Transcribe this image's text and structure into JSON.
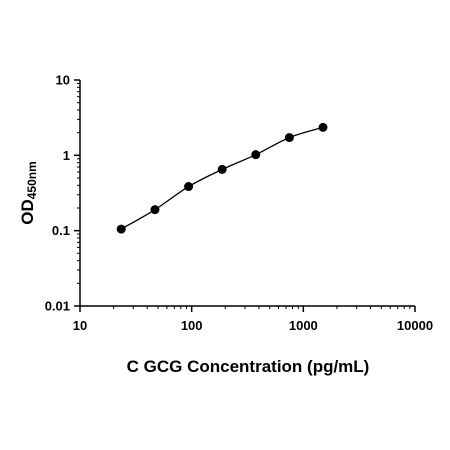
{
  "chart_data": {
    "type": "scatter",
    "title": "",
    "xlabel": "C GCG Concentration (pg/mL)",
    "ylabel": {
      "main": "OD",
      "subscript": "450nm"
    },
    "xscale": "log",
    "yscale": "log",
    "xlim": [
      10,
      10000
    ],
    "ylim": [
      0.01,
      10
    ],
    "xticks": [
      "10",
      "100",
      "1000",
      "10000"
    ],
    "yticks": [
      "0.01",
      "0.1",
      "1",
      "10"
    ],
    "grid": false,
    "legend": "none",
    "marker_color": "#000000",
    "line_color": "#000000",
    "series": [
      {
        "x": [
          23.4,
          46.9,
          93.8,
          187.5,
          375,
          750,
          1500
        ],
        "y": [
          0.105,
          0.19,
          0.385,
          0.65,
          1.02,
          1.72,
          2.35
        ],
        "marker": "circle",
        "fit": "smooth curve"
      }
    ]
  }
}
